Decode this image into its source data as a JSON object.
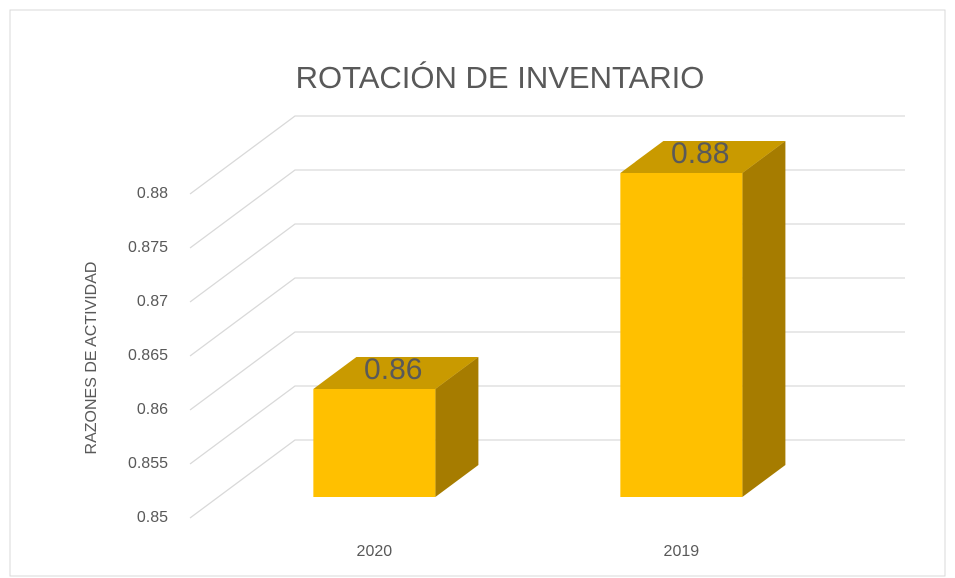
{
  "chart_data": {
    "type": "bar3d",
    "title": "ROTACIÓN DE INVENTARIO",
    "y_label": "RAZONES  DE  ACTIVIDAD",
    "categories": [
      "2020",
      "2019"
    ],
    "values": [
      0.86,
      0.88
    ],
    "color": "#FFC000",
    "ylim": [
      0.85,
      0.88
    ],
    "yticks": [
      0.85,
      0.855,
      0.86,
      0.865,
      0.87,
      0.875,
      0.88
    ],
    "grid": true
  }
}
